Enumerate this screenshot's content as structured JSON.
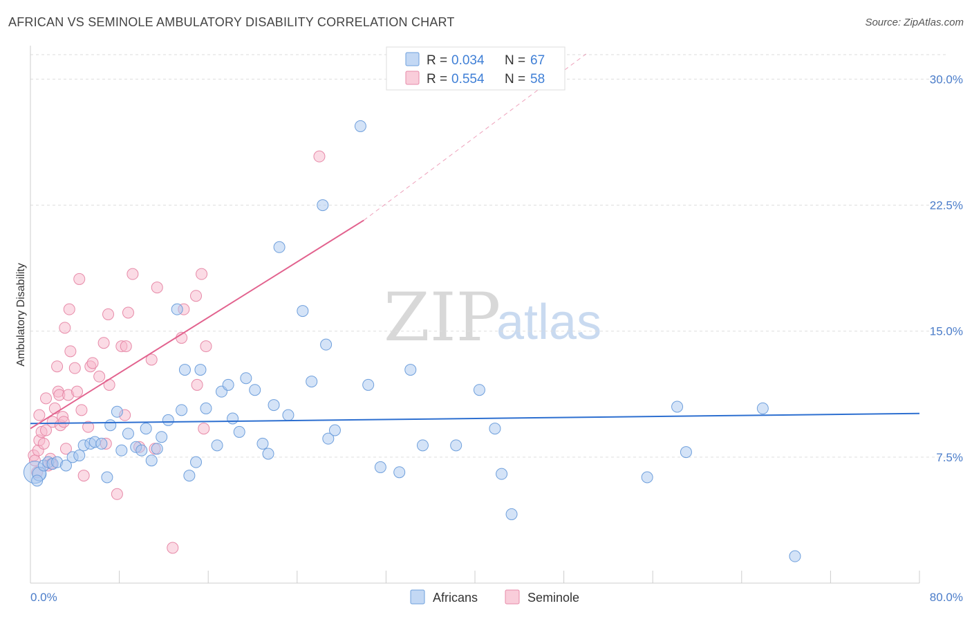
{
  "header": {
    "title": "AFRICAN VS SEMINOLE AMBULATORY DISABILITY CORRELATION CHART",
    "source": "Source: ZipAtlas.com"
  },
  "watermark": {
    "zip": "ZIP",
    "atlas": "atlas"
  },
  "legend_top": {
    "rows": [
      {
        "r_label": "R = ",
        "r_value": "0.034",
        "n_label": "N = ",
        "n_value": "67",
        "color": "#a9c7f0"
      },
      {
        "r_label": "R = ",
        "r_value": "0.554",
        "n_label": "N = ",
        "n_value": "58",
        "color": "#f7b8cb"
      }
    ]
  },
  "legend_bottom": [
    {
      "label": "Africans",
      "color": "#a9c7f0"
    },
    {
      "label": "Seminole",
      "color": "#f7b8cb"
    }
  ],
  "colors": {
    "africans_fill": "#a9c7f0",
    "africans_stroke": "#6e9fdc",
    "africans_line": "#2d6fd0",
    "seminole_fill": "#f7b8cb",
    "seminole_stroke": "#e78aa8",
    "seminole_line": "#e2628e",
    "tick_text": "#4a7cc9",
    "grid": "#dddddd"
  },
  "chart_data": {
    "type": "scatter",
    "title": "AFRICAN VS SEMINOLE AMBULATORY DISABILITY CORRELATION CHART",
    "xlabel": "",
    "ylabel": "Ambulatory Disability",
    "xlim": [
      0,
      80
    ],
    "ylim": [
      0,
      31.5
    ],
    "x_tick_labels": [
      "0.0%",
      "80.0%"
    ],
    "y_ticks": [
      7.5,
      15.0,
      22.5,
      30.0
    ],
    "y_tick_labels": [
      "7.5%",
      "15.0%",
      "22.5%",
      "30.0%"
    ],
    "grid": "horizontal dashed",
    "legend_placement": "top-center and bottom-center",
    "series": [
      {
        "name": "Africans",
        "r": 0.034,
        "n": 67,
        "trend": {
          "x": [
            0,
            80
          ],
          "y": [
            9.5,
            10.1
          ]
        },
        "points": [
          [
            0.4,
            6.6,
            16
          ],
          [
            0.8,
            6.5,
            10
          ],
          [
            1.2,
            7.0,
            8
          ],
          [
            1.6,
            7.2,
            8
          ],
          [
            2.0,
            7.1,
            8
          ],
          [
            2.4,
            7.2,
            8
          ],
          [
            3.2,
            7.0,
            8
          ],
          [
            3.8,
            7.5,
            8
          ],
          [
            4.4,
            7.6,
            8
          ],
          [
            4.8,
            8.2,
            8
          ],
          [
            5.4,
            8.3,
            8
          ],
          [
            5.8,
            8.4,
            8
          ],
          [
            6.4,
            8.3,
            8
          ],
          [
            6.9,
            6.3,
            8
          ],
          [
            7.2,
            9.4,
            8
          ],
          [
            7.8,
            10.2,
            8
          ],
          [
            8.2,
            7.9,
            8
          ],
          [
            8.8,
            8.9,
            8
          ],
          [
            9.5,
            8.1,
            8
          ],
          [
            10.0,
            7.9,
            8
          ],
          [
            10.4,
            9.2,
            8
          ],
          [
            10.9,
            7.3,
            8
          ],
          [
            11.4,
            8.0,
            8
          ],
          [
            11.8,
            8.7,
            8
          ],
          [
            12.4,
            9.7,
            8
          ],
          [
            13.2,
            16.3,
            8
          ],
          [
            13.6,
            10.3,
            8
          ],
          [
            13.9,
            12.7,
            8
          ],
          [
            14.3,
            6.4,
            8
          ],
          [
            14.9,
            7.2,
            8
          ],
          [
            15.3,
            12.7,
            8
          ],
          [
            15.8,
            10.4,
            8
          ],
          [
            16.8,
            8.2,
            8
          ],
          [
            17.2,
            11.4,
            8
          ],
          [
            17.8,
            11.8,
            8
          ],
          [
            18.2,
            9.8,
            8
          ],
          [
            18.8,
            9.0,
            8
          ],
          [
            19.4,
            12.2,
            8
          ],
          [
            20.2,
            11.5,
            8
          ],
          [
            20.9,
            8.3,
            8
          ],
          [
            21.4,
            7.7,
            8
          ],
          [
            21.9,
            10.6,
            8
          ],
          [
            22.4,
            20.0,
            8
          ],
          [
            23.2,
            10.0,
            8
          ],
          [
            24.5,
            16.2,
            8
          ],
          [
            25.3,
            12.0,
            8
          ],
          [
            26.3,
            22.5,
            8
          ],
          [
            26.6,
            14.2,
            8
          ],
          [
            26.8,
            8.6,
            8
          ],
          [
            27.4,
            9.1,
            8
          ],
          [
            29.7,
            27.2,
            8
          ],
          [
            30.4,
            11.8,
            8
          ],
          [
            31.5,
            6.9,
            8
          ],
          [
            33.2,
            6.6,
            8
          ],
          [
            34.2,
            12.7,
            8
          ],
          [
            35.3,
            8.2,
            8
          ],
          [
            38.3,
            8.2,
            8
          ],
          [
            40.4,
            11.5,
            8
          ],
          [
            41.8,
            9.2,
            8
          ],
          [
            42.4,
            6.5,
            8
          ],
          [
            43.3,
            4.1,
            8
          ],
          [
            55.5,
            6.3,
            8
          ],
          [
            58.2,
            10.5,
            8
          ],
          [
            59.0,
            7.8,
            8
          ],
          [
            65.9,
            10.4,
            8
          ],
          [
            68.8,
            1.6,
            8
          ],
          [
            0.6,
            6.1,
            8
          ]
        ]
      },
      {
        "name": "Seminole",
        "r": 0.554,
        "n": 58,
        "trend": {
          "x": [
            0,
            30
          ],
          "y": [
            9.2,
            21.6
          ],
          "dashed_extension_to": [
            50,
            31.5
          ]
        },
        "points": [
          [
            0.3,
            7.6,
            8
          ],
          [
            0.4,
            7.3,
            8
          ],
          [
            0.6,
            6.6,
            8
          ],
          [
            0.7,
            7.9,
            8
          ],
          [
            0.8,
            8.5,
            8
          ],
          [
            0.8,
            10.0,
            8
          ],
          [
            1.0,
            9.0,
            8
          ],
          [
            1.2,
            8.3,
            8
          ],
          [
            1.4,
            9.1,
            8
          ],
          [
            1.4,
            11.0,
            8
          ],
          [
            1.6,
            7.0,
            8
          ],
          [
            1.8,
            7.4,
            8
          ],
          [
            1.9,
            7.1,
            8
          ],
          [
            2.0,
            9.6,
            8
          ],
          [
            2.2,
            10.4,
            8
          ],
          [
            2.4,
            12.9,
            8
          ],
          [
            2.5,
            11.4,
            8
          ],
          [
            2.6,
            11.2,
            8
          ],
          [
            2.7,
            9.4,
            8
          ],
          [
            2.9,
            9.9,
            8
          ],
          [
            3.0,
            9.6,
            8
          ],
          [
            3.1,
            15.2,
            8
          ],
          [
            3.2,
            8.0,
            8
          ],
          [
            3.4,
            11.2,
            8
          ],
          [
            3.5,
            16.3,
            8
          ],
          [
            3.6,
            13.8,
            8
          ],
          [
            4.0,
            12.8,
            8
          ],
          [
            4.2,
            11.4,
            8
          ],
          [
            4.4,
            18.1,
            8
          ],
          [
            4.6,
            10.3,
            8
          ],
          [
            4.8,
            6.4,
            8
          ],
          [
            5.2,
            9.3,
            8
          ],
          [
            5.4,
            12.9,
            8
          ],
          [
            5.6,
            13.1,
            8
          ],
          [
            6.2,
            12.3,
            8
          ],
          [
            6.6,
            14.3,
            8
          ],
          [
            6.8,
            8.3,
            8
          ],
          [
            7.0,
            16.0,
            8
          ],
          [
            7.1,
            11.8,
            8
          ],
          [
            7.8,
            5.3,
            8
          ],
          [
            8.2,
            14.1,
            8
          ],
          [
            8.5,
            10.0,
            8
          ],
          [
            8.6,
            14.1,
            8
          ],
          [
            8.8,
            16.1,
            8
          ],
          [
            9.2,
            18.4,
            8
          ],
          [
            9.8,
            8.1,
            8
          ],
          [
            10.9,
            13.3,
            8
          ],
          [
            11.2,
            8.0,
            8
          ],
          [
            11.4,
            17.6,
            8
          ],
          [
            12.8,
            2.1,
            8
          ],
          [
            13.6,
            14.6,
            8
          ],
          [
            13.8,
            16.3,
            8
          ],
          [
            14.9,
            17.1,
            8
          ],
          [
            15.0,
            11.8,
            8
          ],
          [
            15.4,
            18.4,
            8
          ],
          [
            15.6,
            9.2,
            8
          ],
          [
            15.8,
            14.1,
            8
          ],
          [
            26.0,
            25.4,
            8
          ]
        ]
      }
    ]
  }
}
